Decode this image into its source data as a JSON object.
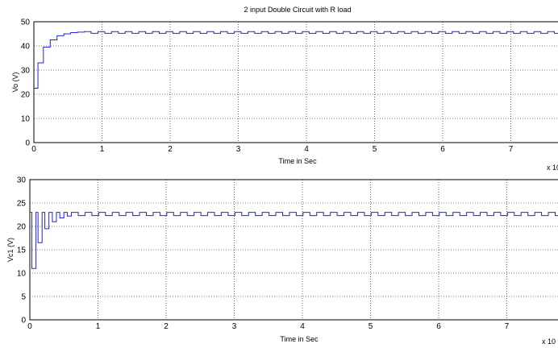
{
  "chart_data": [
    {
      "type": "line",
      "title": "2 input Double Circuit with R load",
      "xlabel": "Time in Sec",
      "ylabel": "Vo (V)",
      "x_multiplier": "x 10",
      "xlim": [
        0,
        7.9
      ],
      "ylim": [
        0,
        50
      ],
      "xticks": [
        "0",
        "1",
        "2",
        "3",
        "4",
        "5",
        "6",
        "7"
      ],
      "yticks": [
        "0",
        "10",
        "20",
        "30",
        "40",
        "50"
      ],
      "grid": true,
      "line_color": "#2323e0",
      "series": [
        {
          "values": [
            [
              0,
              22.5
            ],
            [
              0.06,
              22.5
            ],
            [
              0.06,
              33
            ],
            [
              0.14,
              33
            ],
            [
              0.14,
              39.5
            ],
            [
              0.24,
              39.5
            ],
            [
              0.24,
              42.5
            ],
            [
              0.34,
              42.5
            ],
            [
              0.34,
              44.2
            ],
            [
              0.44,
              44.2
            ],
            [
              0.44,
              45
            ],
            [
              0.54,
              45
            ],
            [
              0.54,
              45.5
            ],
            [
              0.64,
              45.5
            ],
            [
              0.64,
              45.7
            ],
            [
              0.74,
              45.7
            ],
            [
              0.74,
              45.9
            ],
            [
              7.9,
              45.9
            ]
          ]
        }
      ]
    },
    {
      "type": "line",
      "title": "",
      "xlabel": "Time in Sec",
      "ylabel": "Vc1 (V)",
      "x_multiplier": "x 10",
      "xlim": [
        0,
        7.9
      ],
      "ylim": [
        0,
        30
      ],
      "xticks": [
        "0",
        "1",
        "2",
        "3",
        "4",
        "5",
        "6",
        "7"
      ],
      "yticks": [
        "0",
        "5",
        "10",
        "15",
        "20",
        "25",
        "30"
      ],
      "grid": true,
      "line_color": "#2323e0",
      "series": [
        {
          "values": [
            [
              0,
              23
            ],
            [
              0.03,
              23
            ],
            [
              0.03,
              11
            ],
            [
              0.09,
              11
            ],
            [
              0.09,
              23
            ],
            [
              0.12,
              23
            ],
            [
              0.12,
              16.5
            ],
            [
              0.18,
              16.5
            ],
            [
              0.18,
              23
            ],
            [
              0.22,
              23
            ],
            [
              0.22,
              19.5
            ],
            [
              0.28,
              19.5
            ],
            [
              0.28,
              23
            ],
            [
              0.33,
              23
            ],
            [
              0.33,
              21
            ],
            [
              0.39,
              21
            ],
            [
              0.39,
              23
            ],
            [
              0.44,
              23
            ],
            [
              0.44,
              21.8
            ],
            [
              0.5,
              21.8
            ],
            [
              0.5,
              23
            ],
            [
              0.55,
              23
            ],
            [
              0.55,
              22.2
            ],
            [
              0.61,
              22.2
            ],
            [
              0.61,
              23
            ],
            [
              7.9,
              23
            ]
          ]
        }
      ]
    }
  ]
}
